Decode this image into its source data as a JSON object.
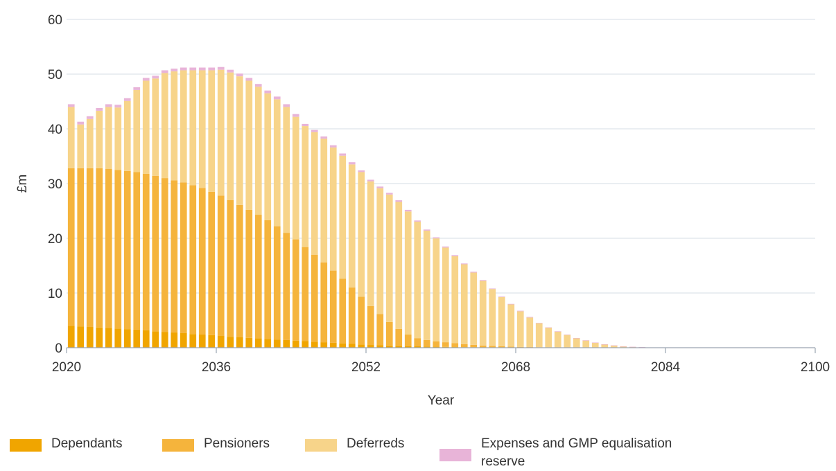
{
  "chart_data": {
    "type": "bar",
    "stacked": true,
    "xlabel": "Year",
    "ylabel": "£m",
    "ylim": [
      0,
      60
    ],
    "yticks": [
      0,
      10,
      20,
      30,
      40,
      50,
      60
    ],
    "xlim": [
      2020,
      2100
    ],
    "xticks": [
      2020,
      2036,
      2052,
      2068,
      2084,
      2100
    ],
    "grid": true,
    "legend_position": "bottom",
    "x": [
      2020,
      2021,
      2022,
      2023,
      2024,
      2025,
      2026,
      2027,
      2028,
      2029,
      2030,
      2031,
      2032,
      2033,
      2034,
      2035,
      2036,
      2037,
      2038,
      2039,
      2040,
      2041,
      2042,
      2043,
      2044,
      2045,
      2046,
      2047,
      2048,
      2049,
      2050,
      2051,
      2052,
      2053,
      2054,
      2055,
      2056,
      2057,
      2058,
      2059,
      2060,
      2061,
      2062,
      2063,
      2064,
      2065,
      2066,
      2067,
      2068,
      2069,
      2070,
      2071,
      2072,
      2073,
      2074,
      2075,
      2076,
      2077,
      2078,
      2079,
      2080,
      2081,
      2082,
      2083,
      2084,
      2085,
      2086,
      2087,
      2088,
      2089,
      2090,
      2091,
      2092,
      2093,
      2094,
      2095,
      2096,
      2097,
      2098,
      2099
    ],
    "series": [
      {
        "name": "Dependants",
        "color": "#f0a500",
        "values": [
          4.0,
          3.9,
          3.8,
          3.7,
          3.6,
          3.5,
          3.4,
          3.3,
          3.2,
          3.0,
          2.9,
          2.8,
          2.7,
          2.5,
          2.4,
          2.3,
          2.2,
          2.0,
          1.9,
          1.8,
          1.7,
          1.6,
          1.5,
          1.4,
          1.3,
          1.2,
          1.1,
          1.0,
          0.9,
          0.8,
          0.7,
          0.6,
          0.5,
          0.45,
          0.4,
          0.35,
          0.3,
          0.25,
          0.2,
          0.18,
          0.15,
          0.12,
          0.1,
          0.08,
          0.06,
          0.05,
          0.04,
          0.03,
          0.02,
          0.02,
          0.01,
          0.01,
          0.01,
          0.01,
          0,
          0,
          0,
          0,
          0,
          0,
          0,
          0,
          0,
          0,
          0,
          0,
          0,
          0,
          0,
          0,
          0,
          0,
          0,
          0,
          0,
          0,
          0,
          0,
          0,
          0
        ]
      },
      {
        "name": "Pensioners",
        "color": "#f5b43c",
        "values": [
          28.8,
          28.9,
          29.0,
          29.1,
          29.1,
          29.0,
          28.9,
          28.8,
          28.6,
          28.4,
          28.1,
          27.8,
          27.5,
          27.2,
          26.8,
          26.2,
          25.6,
          25.0,
          24.2,
          23.4,
          22.6,
          21.7,
          20.7,
          19.6,
          18.5,
          17.2,
          15.9,
          14.6,
          13.2,
          11.8,
          10.3,
          8.7,
          7.1,
          5.7,
          4.3,
          3.1,
          2.1,
          1.5,
          1.2,
          1.0,
          0.85,
          0.7,
          0.55,
          0.45,
          0.35,
          0.28,
          0.22,
          0.18,
          0.14,
          0.1,
          0.08,
          0.06,
          0.05,
          0.04,
          0.03,
          0.02,
          0.02,
          0.01,
          0.01,
          0,
          0,
          0,
          0,
          0,
          0,
          0,
          0,
          0,
          0,
          0,
          0,
          0,
          0,
          0,
          0,
          0,
          0,
          0,
          0,
          0
        ]
      },
      {
        "name": "Deferreds",
        "color": "#f7d48a",
        "values": [
          11.2,
          8.0,
          9.0,
          10.5,
          11.3,
          11.4,
          12.8,
          15.0,
          17.0,
          17.8,
          19.2,
          19.9,
          20.5,
          21.0,
          21.5,
          22.2,
          23.0,
          23.3,
          23.5,
          23.6,
          23.4,
          23.2,
          23.2,
          23.0,
          22.4,
          22.1,
          22.4,
          22.6,
          22.5,
          22.5,
          22.5,
          22.8,
          22.8,
          23.0,
          23.3,
          23.2,
          22.5,
          21.3,
          20.0,
          18.8,
          17.3,
          15.9,
          14.6,
          13.2,
          11.8,
          10.4,
          9.0,
          7.7,
          6.5,
          5.4,
          4.4,
          3.6,
          2.9,
          2.3,
          1.7,
          1.3,
          0.9,
          0.6,
          0.4,
          0.25,
          0.15,
          0.1,
          0.05,
          0.03,
          0.02,
          0.01,
          0.01,
          0.01,
          0.01,
          0.01,
          0.01,
          0.01,
          0.01,
          0.01,
          0.01,
          0.01,
          0.01,
          0.01,
          0.01,
          0.01
        ]
      },
      {
        "name": "Expenses and GMP equalisation reserve",
        "color": "#e8b4d8",
        "values": [
          0.5,
          0.5,
          0.5,
          0.5,
          0.5,
          0.5,
          0.5,
          0.5,
          0.5,
          0.5,
          0.5,
          0.5,
          0.5,
          0.5,
          0.5,
          0.5,
          0.5,
          0.5,
          0.5,
          0.5,
          0.5,
          0.5,
          0.5,
          0.5,
          0.5,
          0.4,
          0.4,
          0.4,
          0.4,
          0.4,
          0.4,
          0.3,
          0.3,
          0.3,
          0.3,
          0.3,
          0.3,
          0.2,
          0.2,
          0.2,
          0.2,
          0.2,
          0.15,
          0.15,
          0.15,
          0.1,
          0.1,
          0.1,
          0.1,
          0.1,
          0.05,
          0.05,
          0.05,
          0.05,
          0.05,
          0.05,
          0.03,
          0.03,
          0.02,
          0.02,
          0.02,
          0.02,
          0.01,
          0.01,
          0.01,
          0.01,
          0.01,
          0.01,
          0.01,
          0.01,
          0.01,
          0.01,
          0.01,
          0.01,
          0.01,
          0.01,
          0.01,
          0.01,
          0.01,
          0.01
        ]
      }
    ]
  },
  "legend": {
    "dependants": "Dependants",
    "pensioners": "Pensioners",
    "deferreds": "Deferreds",
    "expenses_line1": "Expenses and GMP equalisation",
    "expenses_line2": "reserve"
  }
}
